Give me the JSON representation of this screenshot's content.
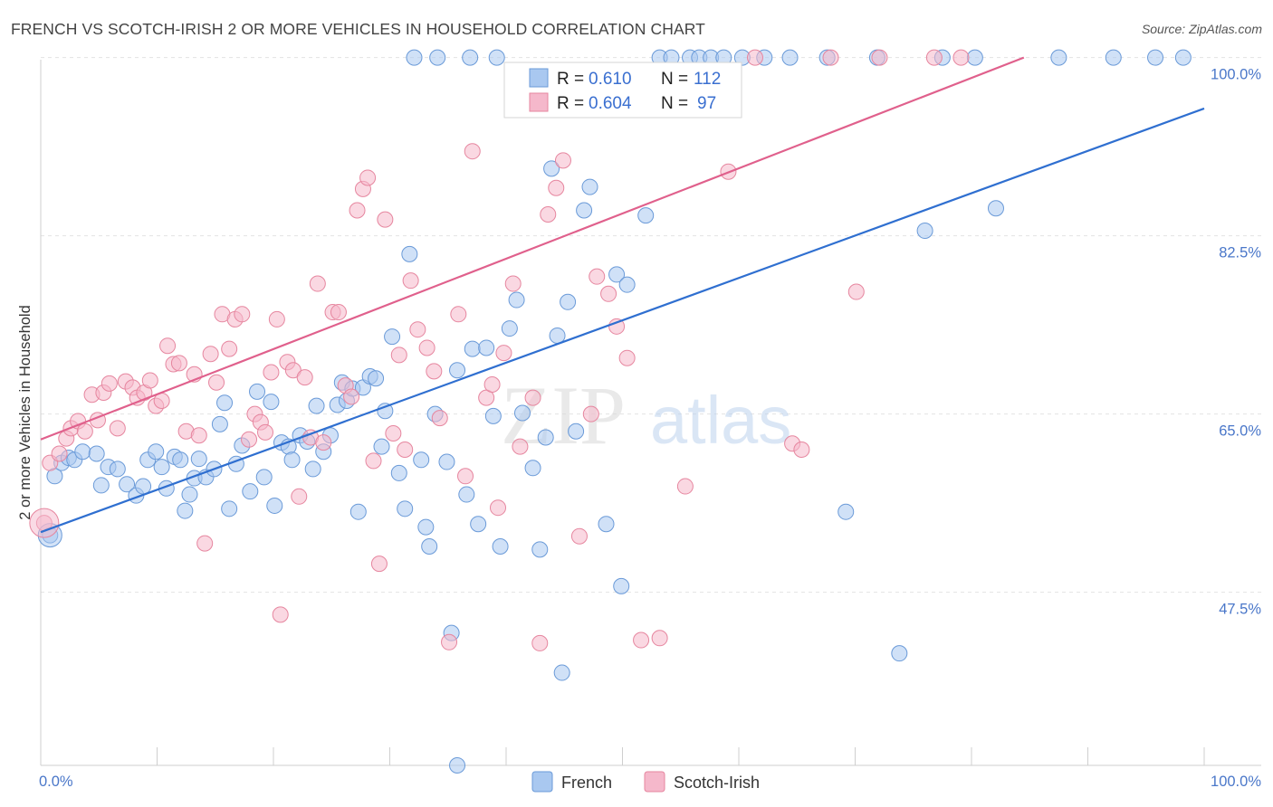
{
  "header": {
    "title": "FRENCH VS SCOTCH-IRISH 2 OR MORE VEHICLES IN HOUSEHOLD CORRELATION CHART",
    "source": "Source: ZipAtlas.com"
  },
  "watermark": {
    "zip": "ZIP",
    "atlas": "atlas"
  },
  "legend": {
    "french": {
      "r_label": "R =",
      "r_value": "0.610",
      "n_label": "N =",
      "n_value": "112"
    },
    "scotch": {
      "r_label": "R =",
      "r_value": "0.604",
      "n_label": "N =",
      "n_value": "97"
    }
  },
  "chart_data": {
    "type": "scatter",
    "ylabel": "2 or more Vehicles in Household",
    "xlim": [
      0,
      100
    ],
    "ylim": [
      30.5,
      100.5
    ],
    "y_ticks": [
      {
        "v": 100,
        "label": "100.0%"
      },
      {
        "v": 82.5,
        "label": "82.5%"
      },
      {
        "v": 65,
        "label": "65.0%"
      },
      {
        "v": 47.5,
        "label": "47.5%"
      }
    ],
    "x_tick_labels": {
      "min": "0.0%",
      "max": "100.0%"
    },
    "grid": true,
    "legend_position": "top-center",
    "series": [
      {
        "name": "French",
        "color": "#a9c8f0",
        "stroke": "#6a9ad8",
        "line_color": "#2f6fd0",
        "trend": [
          [
            0,
            53.4
          ],
          [
            100,
            95.0
          ]
        ],
        "points": [
          [
            0.8,
            53.1
          ],
          [
            1.2,
            58.9
          ],
          [
            1.8,
            60.2
          ],
          [
            2.4,
            60.7
          ],
          [
            2.9,
            60.5
          ],
          [
            3.6,
            61.3
          ],
          [
            4.8,
            61.1
          ],
          [
            5.2,
            58.0
          ],
          [
            5.8,
            59.8
          ],
          [
            6.6,
            59.6
          ],
          [
            7.4,
            58.1
          ],
          [
            8.2,
            57.0
          ],
          [
            8.8,
            57.9
          ],
          [
            9.2,
            60.5
          ],
          [
            9.9,
            61.3
          ],
          [
            10.4,
            59.8
          ],
          [
            10.8,
            57.7
          ],
          [
            11.5,
            60.8
          ],
          [
            12,
            60.5
          ],
          [
            12.4,
            55.5
          ],
          [
            12.8,
            57.1
          ],
          [
            13.2,
            58.7
          ],
          [
            13.6,
            60.6
          ],
          [
            14.2,
            58.8
          ],
          [
            14.9,
            59.6
          ],
          [
            15.4,
            64.0
          ],
          [
            15.8,
            66.1
          ],
          [
            16.2,
            55.7
          ],
          [
            16.8,
            60.1
          ],
          [
            17.3,
            61.9
          ],
          [
            18,
            57.4
          ],
          [
            18.6,
            67.2
          ],
          [
            19.2,
            58.8
          ],
          [
            19.8,
            66.2
          ],
          [
            20.1,
            56.0
          ],
          [
            20.7,
            62.2
          ],
          [
            21.3,
            61.8
          ],
          [
            21.6,
            60.5
          ],
          [
            22.3,
            62.9
          ],
          [
            22.9,
            62.3
          ],
          [
            23.4,
            59.6
          ],
          [
            23.7,
            65.8
          ],
          [
            24.3,
            61.3
          ],
          [
            24.9,
            62.9
          ],
          [
            25.5,
            65.9
          ],
          [
            25.9,
            68.1
          ],
          [
            26.3,
            66.3
          ],
          [
            26.8,
            67.5
          ],
          [
            27.3,
            55.4
          ],
          [
            27.7,
            67.6
          ],
          [
            28.3,
            68.7
          ],
          [
            28.8,
            68.5
          ],
          [
            29.3,
            61.8
          ],
          [
            29.6,
            65.3
          ],
          [
            30.2,
            72.6
          ],
          [
            30.8,
            59.2
          ],
          [
            31.3,
            55.7
          ],
          [
            31.7,
            80.7
          ],
          [
            32.7,
            60.5
          ],
          [
            33.1,
            53.9
          ],
          [
            33.4,
            52.0
          ],
          [
            33.9,
            65.0
          ],
          [
            34.9,
            60.3
          ],
          [
            35.3,
            43.5
          ],
          [
            35.8,
            69.3
          ],
          [
            36.6,
            57.1
          ],
          [
            37.1,
            71.4
          ],
          [
            37.6,
            54.2
          ],
          [
            38.3,
            71.5
          ],
          [
            38.9,
            64.8
          ],
          [
            39.5,
            52.0
          ],
          [
            40.3,
            73.4
          ],
          [
            40.9,
            76.2
          ],
          [
            41.4,
            65.1
          ],
          [
            42.3,
            59.7
          ],
          [
            42.9,
            51.7
          ],
          [
            43.4,
            62.7
          ],
          [
            43.9,
            89.1
          ],
          [
            44.4,
            72.7
          ],
          [
            44.8,
            39.6
          ],
          [
            45.3,
            76.0
          ],
          [
            46,
            63.3
          ],
          [
            46.7,
            85.0
          ],
          [
            47.2,
            87.3
          ],
          [
            48.6,
            54.2
          ],
          [
            49.5,
            78.7
          ],
          [
            49.9,
            48.1
          ],
          [
            50.4,
            77.7
          ],
          [
            52,
            84.5
          ],
          [
            53.2,
            100
          ],
          [
            54.2,
            100
          ],
          [
            55.8,
            100
          ],
          [
            56.6,
            100
          ],
          [
            57.6,
            100
          ],
          [
            58.7,
            100
          ],
          [
            60.3,
            100
          ],
          [
            62.2,
            100
          ],
          [
            64.4,
            100
          ],
          [
            67.6,
            100
          ],
          [
            69.2,
            55.4
          ],
          [
            71.9,
            100
          ],
          [
            76,
            83.0
          ],
          [
            77.5,
            100
          ],
          [
            80.3,
            100
          ],
          [
            82.1,
            85.2
          ],
          [
            87.5,
            100
          ],
          [
            92.2,
            100
          ],
          [
            95.8,
            100
          ],
          [
            98.2,
            100
          ],
          [
            32.1,
            100
          ],
          [
            34.1,
            100
          ],
          [
            36.9,
            100
          ],
          [
            39.2,
            100
          ],
          [
            73.8,
            41.5
          ],
          [
            35.8,
            28.9
          ]
        ]
      },
      {
        "name": "Scotch-Irish",
        "color": "#f5b8cb",
        "stroke": "#e6869f",
        "line_color": "#e0608c",
        "trend": [
          [
            0,
            62.5
          ],
          [
            84.5,
            100
          ]
        ],
        "points": [
          [
            0.3,
            54.3
          ],
          [
            0.8,
            60.2
          ],
          [
            1.6,
            61.1
          ],
          [
            2.2,
            62.6
          ],
          [
            2.6,
            63.6
          ],
          [
            3.2,
            64.3
          ],
          [
            3.8,
            63.3
          ],
          [
            4.4,
            66.9
          ],
          [
            4.9,
            64.4
          ],
          [
            5.4,
            67.1
          ],
          [
            5.9,
            68.0
          ],
          [
            6.6,
            63.6
          ],
          [
            7.3,
            68.2
          ],
          [
            7.9,
            67.6
          ],
          [
            8.3,
            66.6
          ],
          [
            8.9,
            67.1
          ],
          [
            9.4,
            68.3
          ],
          [
            9.9,
            65.8
          ],
          [
            10.4,
            66.3
          ],
          [
            10.9,
            71.7
          ],
          [
            11.4,
            69.9
          ],
          [
            11.9,
            70.0
          ],
          [
            12.5,
            63.3
          ],
          [
            13.2,
            68.9
          ],
          [
            13.6,
            62.9
          ],
          [
            14.1,
            52.3
          ],
          [
            14.6,
            70.9
          ],
          [
            15.1,
            68.1
          ],
          [
            15.6,
            74.8
          ],
          [
            16.2,
            71.4
          ],
          [
            16.7,
            74.3
          ],
          [
            17.3,
            74.8
          ],
          [
            17.9,
            62.5
          ],
          [
            18.4,
            65.0
          ],
          [
            18.9,
            64.2
          ],
          [
            19.3,
            63.2
          ],
          [
            19.8,
            69.1
          ],
          [
            20.3,
            74.3
          ],
          [
            20.6,
            45.3
          ],
          [
            21.2,
            70.1
          ],
          [
            21.7,
            69.3
          ],
          [
            22.2,
            56.9
          ],
          [
            22.7,
            68.6
          ],
          [
            23.2,
            62.7
          ],
          [
            23.8,
            77.8
          ],
          [
            24.3,
            62.2
          ],
          [
            25.1,
            75.0
          ],
          [
            25.6,
            75.0
          ],
          [
            26.2,
            67.8
          ],
          [
            26.7,
            66.7
          ],
          [
            27.2,
            85.0
          ],
          [
            27.7,
            87.1
          ],
          [
            28.1,
            88.2
          ],
          [
            28.6,
            60.4
          ],
          [
            29.1,
            50.3
          ],
          [
            29.6,
            84.1
          ],
          [
            30.3,
            63.1
          ],
          [
            30.8,
            70.8
          ],
          [
            31.3,
            61.5
          ],
          [
            31.8,
            78.1
          ],
          [
            32.4,
            73.3
          ],
          [
            33.2,
            71.5
          ],
          [
            33.8,
            69.2
          ],
          [
            34.3,
            64.6
          ],
          [
            35.1,
            42.6
          ],
          [
            35.9,
            74.8
          ],
          [
            36.5,
            58.9
          ],
          [
            37.1,
            90.8
          ],
          [
            38.3,
            66.6
          ],
          [
            38.8,
            67.9
          ],
          [
            39.3,
            55.8
          ],
          [
            39.8,
            71.0
          ],
          [
            40.6,
            77.8
          ],
          [
            41.2,
            61.8
          ],
          [
            42.3,
            66.6
          ],
          [
            42.9,
            42.5
          ],
          [
            43.6,
            84.6
          ],
          [
            44.3,
            87.2
          ],
          [
            44.9,
            89.9
          ],
          [
            46.3,
            53.0
          ],
          [
            47.3,
            65.0
          ],
          [
            47.8,
            78.5
          ],
          [
            48.8,
            76.8
          ],
          [
            49.5,
            73.6
          ],
          [
            50.4,
            70.5
          ],
          [
            51.6,
            42.8
          ],
          [
            53.2,
            43.0
          ],
          [
            55.4,
            57.9
          ],
          [
            59.1,
            88.8
          ],
          [
            61.4,
            100
          ],
          [
            64.6,
            62.1
          ],
          [
            65.4,
            61.5
          ],
          [
            67.9,
            100
          ],
          [
            70.1,
            77.0
          ],
          [
            72.1,
            100
          ],
          [
            76.8,
            100
          ],
          [
            79.1,
            100
          ]
        ]
      }
    ]
  },
  "bottom_legend": {
    "french": "French",
    "scotch": "Scotch-Irish"
  }
}
